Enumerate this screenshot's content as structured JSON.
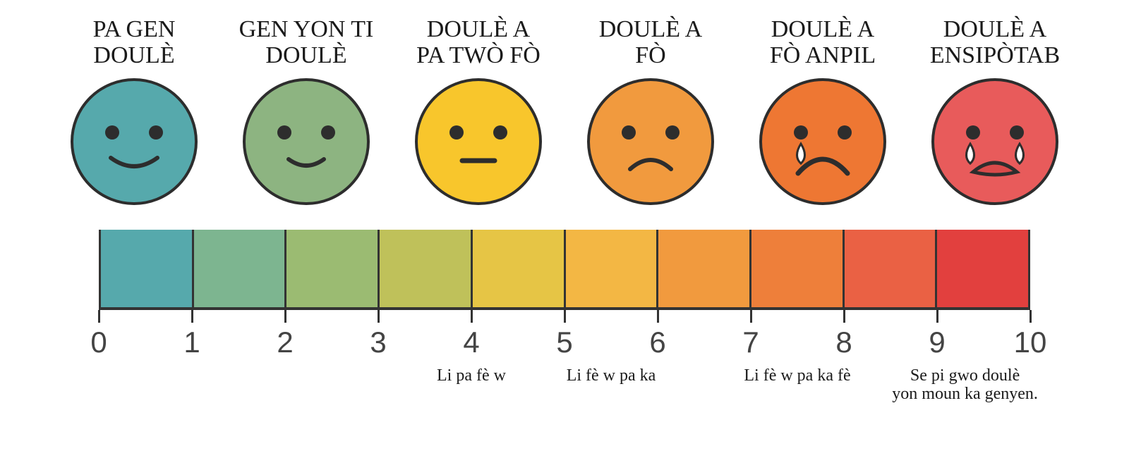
{
  "faces": [
    {
      "label": "PA GEN\nDOULÈ",
      "fill": "#56a9ac",
      "mouth": "smile",
      "tears": 0
    },
    {
      "label": "GEN YON TI\nDOULÈ",
      "fill": "#8db481",
      "mouth": "smile-small",
      "tears": 0
    },
    {
      "label": "DOULÈ A\nPA TWÒ FÒ",
      "fill": "#f8c62c",
      "mouth": "flat",
      "tears": 0
    },
    {
      "label": "DOULÈ A\nFÒ",
      "fill": "#f19a3e",
      "mouth": "frown",
      "tears": 0
    },
    {
      "label": "DOULÈ A\nFÒ ANPIL",
      "fill": "#ee7733",
      "mouth": "frown-big",
      "tears": 1
    },
    {
      "label": "DOULÈ A\nENSIPÒTAB",
      "fill": "#e85b5b",
      "mouth": "cry",
      "tears": 2
    }
  ],
  "face_stroke": "#2d2d2d",
  "face_stroke_width": 4,
  "eye_color": "#2d2d2d",
  "eye_radius": 10,
  "tear_fill": "#ffffff",
  "tear_stroke": "#2d2d2d",
  "scale_colors": [
    "#56a9ac",
    "#7db590",
    "#9bbb72",
    "#bfc15a",
    "#e6c545",
    "#f3b744",
    "#f19a3e",
    "#ee7f3a",
    "#ea6144",
    "#e2403e"
  ],
  "scale_border_color": "#333333",
  "numbers": [
    "0",
    "1",
    "2",
    "3",
    "4",
    "5",
    "6",
    "7",
    "8",
    "9",
    "10"
  ],
  "number_color": "#444444",
  "descriptions": [
    {
      "text": "Li pa fè w",
      "pos_pct": 40
    },
    {
      "text": "Li fè w pa ka",
      "pos_pct": 55
    },
    {
      "text": "Li fè w pa ka fè",
      "pos_pct": 75
    },
    {
      "text": "Se pi gwo doulè\nyon moun ka genyen.",
      "pos_pct": 93
    }
  ],
  "background_color": "#ffffff"
}
